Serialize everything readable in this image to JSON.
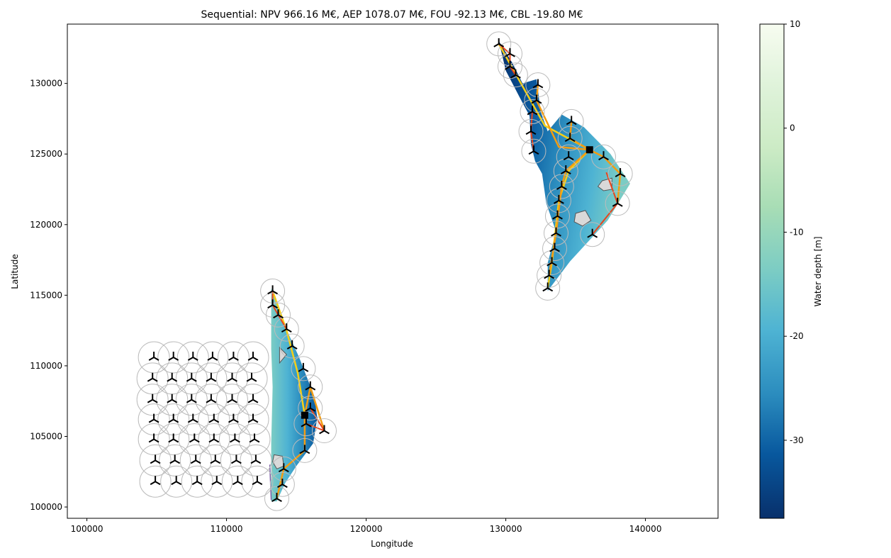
{
  "chart_data": {
    "type": "scatter",
    "title": "Sequential: NPV 966.16 M€, AEP 1078.07 M€, FOU -92.13 M€, CBL -19.80 M€",
    "xlabel": "Longitude",
    "ylabel": "Latitude",
    "xlim": [
      98600,
      145200
    ],
    "ylim": [
      99200,
      134200
    ],
    "xticks": [
      100000,
      110000,
      120000,
      130000,
      140000
    ],
    "yticks": [
      100000,
      105000,
      110000,
      115000,
      120000,
      125000,
      130000
    ],
    "colorbar": {
      "label": "Water depth [m]",
      "range": [
        -37.5,
        10
      ],
      "ticks": [
        10,
        0,
        -10,
        -20,
        -30
      ],
      "colormap": "GnBu",
      "colors": [
        "#08306b",
        "#08589e",
        "#2b8cbe",
        "#4eb3d3",
        "#7bccc4",
        "#a8ddb5",
        "#ccebc5",
        "#e0f3db",
        "#f7fcf0"
      ]
    },
    "colors": {
      "cable_large": "#e8451c",
      "cable_medium": "#f39c12",
      "cable_small": "#f5cf16",
      "cable_minor": "#7b5ea7",
      "substation": "#000000",
      "turbine": "#000000",
      "radius_circle": "#bbbbbb",
      "exclusion_zone": "#d9d9d9"
    },
    "substations": [
      {
        "x": 115600,
        "y": 106500
      },
      {
        "x": 136000,
        "y": 125300
      }
    ],
    "turbines_neighbor_farm": [
      {
        "x": 104800,
        "y": 110600
      },
      {
        "x": 106200,
        "y": 110600
      },
      {
        "x": 107600,
        "y": 110600
      },
      {
        "x": 109000,
        "y": 110600
      },
      {
        "x": 110500,
        "y": 110600
      },
      {
        "x": 111900,
        "y": 110600
      },
      {
        "x": 104700,
        "y": 109100
      },
      {
        "x": 106100,
        "y": 109100
      },
      {
        "x": 107500,
        "y": 109100
      },
      {
        "x": 108900,
        "y": 109100
      },
      {
        "x": 110400,
        "y": 109100
      },
      {
        "x": 111800,
        "y": 109100
      },
      {
        "x": 104700,
        "y": 107600
      },
      {
        "x": 106100,
        "y": 107600
      },
      {
        "x": 107500,
        "y": 107600
      },
      {
        "x": 108900,
        "y": 107600
      },
      {
        "x": 110400,
        "y": 107600
      },
      {
        "x": 111900,
        "y": 107600
      },
      {
        "x": 104800,
        "y": 106200
      },
      {
        "x": 106200,
        "y": 106200
      },
      {
        "x": 107600,
        "y": 106200
      },
      {
        "x": 109100,
        "y": 106200
      },
      {
        "x": 110500,
        "y": 106200
      },
      {
        "x": 111900,
        "y": 106200
      },
      {
        "x": 104800,
        "y": 104800
      },
      {
        "x": 106200,
        "y": 104800
      },
      {
        "x": 107700,
        "y": 104800
      },
      {
        "x": 109100,
        "y": 104800
      },
      {
        "x": 110600,
        "y": 104800
      },
      {
        "x": 112000,
        "y": 104800
      },
      {
        "x": 104900,
        "y": 103300
      },
      {
        "x": 106300,
        "y": 103300
      },
      {
        "x": 107800,
        "y": 103300
      },
      {
        "x": 109200,
        "y": 103300
      },
      {
        "x": 110700,
        "y": 103300
      },
      {
        "x": 112100,
        "y": 103300
      },
      {
        "x": 104900,
        "y": 101800
      },
      {
        "x": 106400,
        "y": 101800
      },
      {
        "x": 107900,
        "y": 101800
      },
      {
        "x": 109300,
        "y": 101800
      },
      {
        "x": 110800,
        "y": 101800
      },
      {
        "x": 112200,
        "y": 101800
      }
    ],
    "turbines_south_farm": [
      {
        "x": 113300,
        "y": 115300
      },
      {
        "x": 113300,
        "y": 114300
      },
      {
        "x": 113700,
        "y": 113600
      },
      {
        "x": 114300,
        "y": 112600
      },
      {
        "x": 114700,
        "y": 111400
      },
      {
        "x": 115500,
        "y": 109800
      },
      {
        "x": 116000,
        "y": 108500
      },
      {
        "x": 116000,
        "y": 107000
      },
      {
        "x": 115700,
        "y": 105900
      },
      {
        "x": 117000,
        "y": 105400
      },
      {
        "x": 115600,
        "y": 104000
      },
      {
        "x": 114100,
        "y": 102700
      },
      {
        "x": 114000,
        "y": 101600
      },
      {
        "x": 113600,
        "y": 100600
      }
    ],
    "turbines_north_farm": [
      {
        "x": 129500,
        "y": 132800
      },
      {
        "x": 130300,
        "y": 132100
      },
      {
        "x": 130300,
        "y": 131200
      },
      {
        "x": 130700,
        "y": 130600
      },
      {
        "x": 132300,
        "y": 129900
      },
      {
        "x": 132200,
        "y": 128800
      },
      {
        "x": 131900,
        "y": 128000
      },
      {
        "x": 131800,
        "y": 126600
      },
      {
        "x": 132000,
        "y": 125200
      },
      {
        "x": 134700,
        "y": 127300
      },
      {
        "x": 134600,
        "y": 126100
      },
      {
        "x": 134500,
        "y": 124800
      },
      {
        "x": 137000,
        "y": 124800
      },
      {
        "x": 138200,
        "y": 123600
      },
      {
        "x": 134300,
        "y": 123800
      },
      {
        "x": 134000,
        "y": 122700
      },
      {
        "x": 133800,
        "y": 121700
      },
      {
        "x": 133700,
        "y": 120600
      },
      {
        "x": 133600,
        "y": 119400
      },
      {
        "x": 138000,
        "y": 121500
      },
      {
        "x": 136200,
        "y": 119300
      },
      {
        "x": 133500,
        "y": 118300
      },
      {
        "x": 133300,
        "y": 117300
      },
      {
        "x": 133100,
        "y": 116400
      },
      {
        "x": 133000,
        "y": 115500
      }
    ]
  }
}
